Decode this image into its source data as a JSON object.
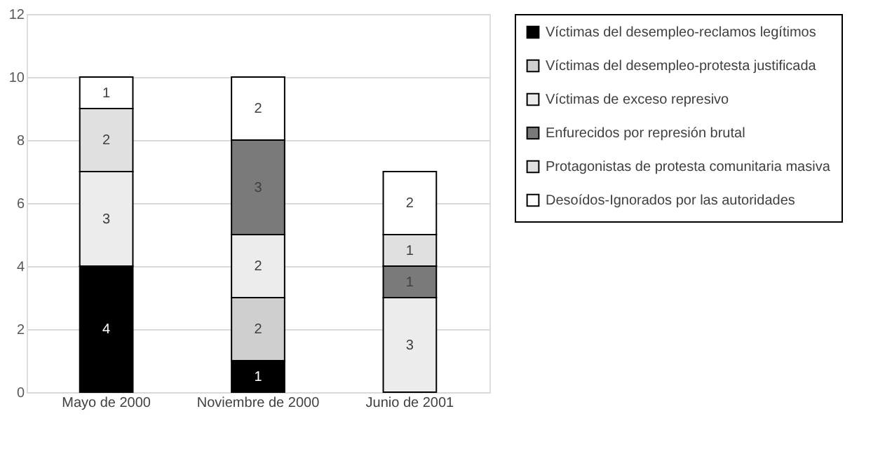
{
  "chart_data": {
    "type": "bar",
    "stacked": true,
    "categories": [
      "Mayo  de 2000",
      "Noviembre de 2000",
      "Junio de 2001"
    ],
    "series": [
      {
        "name": "Víctimas del desempleo-reclamos legítimos",
        "color": "#000000",
        "values": [
          4,
          1,
          null
        ]
      },
      {
        "name": "Víctimas del desempleo-protesta justificada",
        "color": "#cfcfcf",
        "values": [
          null,
          2,
          null
        ]
      },
      {
        "name": "Víctimas de exceso represivo",
        "color": "#ececec",
        "values": [
          3,
          2,
          3
        ]
      },
      {
        "name": "Enfurecidos por represión brutal",
        "color": "#7a7a7a",
        "values": [
          null,
          3,
          1
        ]
      },
      {
        "name": "Protagonistas de protesta comunitaria masiva",
        "color": "#e0e0e0",
        "values": [
          2,
          null,
          1
        ]
      },
      {
        "name": "Desoídos-Ignorados por las autoridades",
        "color": "#ffffff",
        "values": [
          1,
          2,
          2
        ]
      }
    ],
    "ylim": [
      0,
      12
    ],
    "yticks": [
      0,
      2,
      4,
      6,
      8,
      10,
      12
    ],
    "grid": "y",
    "legend": "right",
    "data_labels": true
  }
}
